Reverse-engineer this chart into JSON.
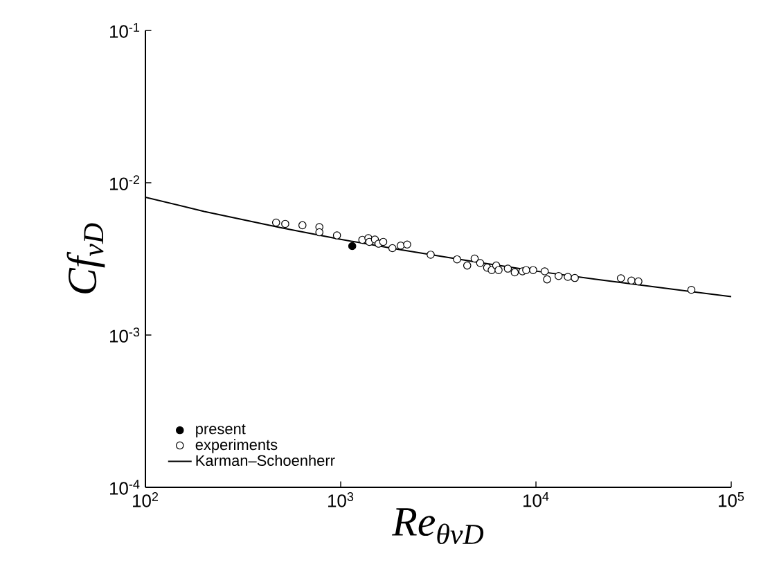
{
  "chart_data": {
    "type": "scatter",
    "xlabel": "Re$_{θvD}$",
    "ylabel": "Cf$_{vD}$",
    "log": "xy",
    "xlim": [
      100,
      100000
    ],
    "ylim": [
      0.0001,
      0.1
    ],
    "xticks": [
      {
        "value": 100,
        "label": "10$^{2}$"
      },
      {
        "value": 1000,
        "label": "10$^{3}$"
      },
      {
        "value": 10000,
        "label": "10$^{4}$"
      },
      {
        "value": 100000,
        "label": "10$^{5}$"
      }
    ],
    "yticks": [
      {
        "value": 0.0001,
        "label": "10$^{-4}$"
      },
      {
        "value": 0.001,
        "label": "10$^{-3}$"
      },
      {
        "value": 0.01,
        "label": "10$^{-2}$"
      },
      {
        "value": 0.1,
        "label": "10$^{-1}$"
      }
    ],
    "grid": false,
    "legend": "bottom left",
    "series": [
      {
        "name": "present",
        "marker": "circle",
        "color": "#000000",
        "x": [
          1146
        ],
        "values": [
          0.00384
        ]
      },
      {
        "name": "experiments",
        "marker": "circle",
        "color": "#ffffff",
        "x": [
          467,
          520,
          637,
          778,
          778,
          957,
          1291,
          1386,
          1402,
          1497,
          1563,
          1652,
          1840,
          2029,
          2190,
          2890,
          3945,
          4446,
          4853,
          5180,
          5623,
          5934,
          6258,
          6436,
          7178,
          7787,
          8531,
          8913,
          9676,
          11090,
          11400,
          13060,
          14560,
          15810,
          27230,
          30830,
          33470,
          62500
        ],
        "values": [
          0.00548,
          0.00537,
          0.00526,
          0.00512,
          0.00473,
          0.00451,
          0.00422,
          0.00433,
          0.00409,
          0.00424,
          0.00398,
          0.00409,
          0.00372,
          0.00387,
          0.00393,
          0.00337,
          0.00314,
          0.00286,
          0.00318,
          0.00297,
          0.00277,
          0.00267,
          0.00286,
          0.00267,
          0.00273,
          0.00258,
          0.00262,
          0.00267,
          0.00267,
          0.00262,
          0.00232,
          0.00244,
          0.00241,
          0.00237,
          0.00236,
          0.00228,
          0.00225,
          0.00198
        ]
      },
      {
        "name": "Karman–Schoenherr",
        "type": "line",
        "marker": "none",
        "line_style": "solid",
        "color": "#000000",
        "x": [
          100,
          200,
          500,
          1000,
          2000,
          5000,
          10000,
          20000,
          50000,
          100000
        ],
        "values": [
          0.00803,
          0.00648,
          0.00505,
          0.00425,
          0.00364,
          0.00301,
          0.00263,
          0.00233,
          0.002,
          0.00179
        ]
      }
    ]
  }
}
